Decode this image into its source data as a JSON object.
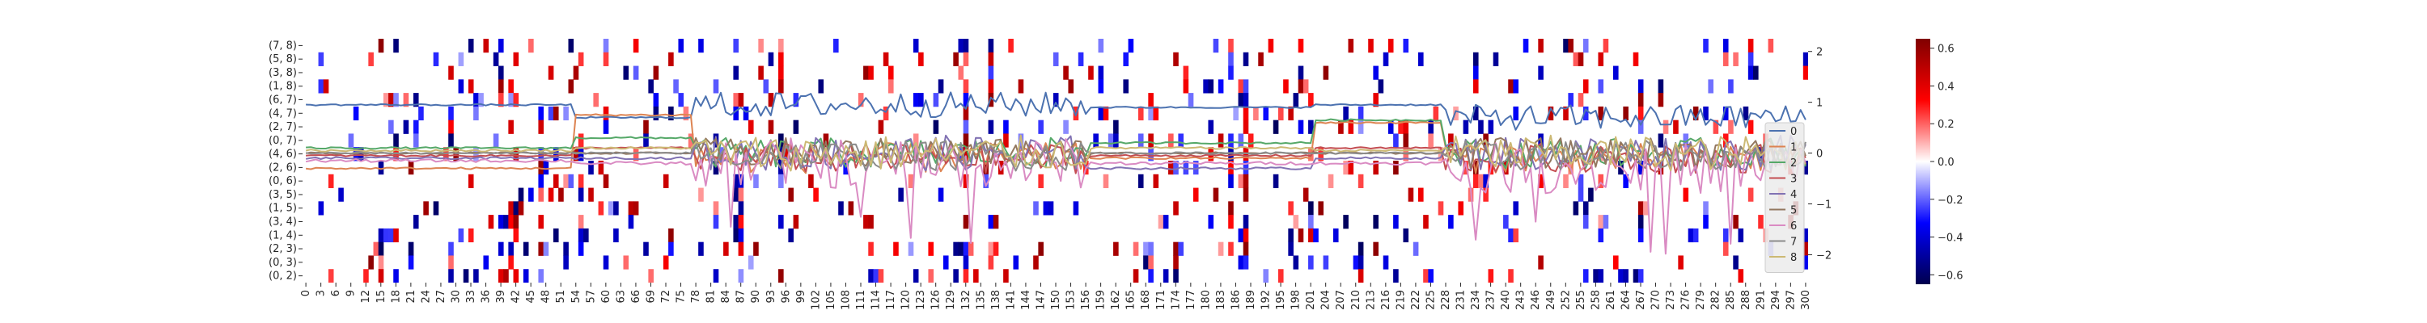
{
  "chart_data": {
    "type": "heatmap",
    "title": "",
    "xlabel": "",
    "ylabel": "",
    "row_labels": [
      "(7, 8)",
      "(5, 8)",
      "(3, 8)",
      "(1, 8)",
      "(6, 7)",
      "(4, 7)",
      "(2, 7)",
      "(0, 7)",
      "(4, 6)",
      "(2, 6)",
      "(0, 6)",
      "(3, 5)",
      "(1, 5)",
      "(3, 4)",
      "(1, 4)",
      "(2, 3)",
      "(0, 3)",
      "(0, 2)"
    ],
    "x_ticks": [
      0,
      3,
      6,
      9,
      12,
      15,
      18,
      21,
      24,
      27,
      30,
      33,
      36,
      39,
      42,
      45,
      48,
      51,
      54,
      57,
      60,
      63,
      66,
      69,
      72,
      75,
      78,
      81,
      84,
      87,
      90,
      93,
      96,
      99,
      102,
      105,
      108,
      111,
      114,
      117,
      120,
      123,
      126,
      129,
      132,
      135,
      138,
      141,
      144,
      147,
      150,
      153,
      156,
      159,
      162,
      165,
      168,
      171,
      174,
      177,
      180,
      183,
      186,
      189,
      192,
      195,
      198,
      201,
      204,
      207,
      210,
      213,
      216,
      219,
      222,
      225,
      228,
      231,
      234,
      237,
      240,
      243,
      246,
      249,
      252,
      255,
      258,
      261,
      264,
      267,
      270,
      273,
      276,
      279,
      282,
      285,
      288,
      291,
      294,
      297,
      300
    ],
    "x_range": [
      0,
      300
    ],
    "colorbar": {
      "cmap": "seismic",
      "range": [
        -0.65,
        0.65
      ],
      "ticks": [
        "0.6",
        "0.4",
        "0.2",
        "0.0",
        "−0.2",
        "−0.4",
        "−0.6"
      ],
      "tick_values": [
        0.6,
        0.4,
        0.2,
        0.0,
        -0.2,
        -0.4,
        -0.6
      ]
    },
    "twin_axis": {
      "ticks": [
        "2",
        "1",
        "0",
        "−1",
        "−2"
      ],
      "tick_values": [
        2,
        1,
        0,
        -1,
        -2
      ],
      "ylim": [
        -2.55,
        2.25
      ]
    },
    "series": [
      {
        "name": "0",
        "color": "#4c72b0",
        "level": 0.95,
        "noise": 0.25,
        "segments": [
          [
            0,
            0.95
          ],
          [
            54,
            0.7
          ],
          [
            78,
            0.95
          ],
          [
            157,
            0.9
          ],
          [
            202,
            0.95
          ],
          [
            228,
            0.7
          ]
        ]
      },
      {
        "name": "1",
        "color": "#dd8452",
        "level": -0.1,
        "noise": 0.3,
        "segments": [
          [
            0,
            -0.3
          ],
          [
            54,
            0.75
          ],
          [
            78,
            -0.1
          ],
          [
            157,
            -0.1
          ],
          [
            202,
            0.6
          ],
          [
            228,
            -0.1
          ]
        ]
      },
      {
        "name": "2",
        "color": "#55a868",
        "level": 0.0,
        "noise": 0.3,
        "segments": [
          [
            0,
            0.1
          ],
          [
            54,
            0.3
          ],
          [
            78,
            0.0
          ],
          [
            157,
            0.2
          ],
          [
            202,
            0.65
          ],
          [
            228,
            0.0
          ]
        ]
      },
      {
        "name": "3",
        "color": "#c44e52",
        "level": -0.1,
        "noise": 0.3,
        "segments": [
          [
            0,
            -0.05
          ],
          [
            54,
            0.1
          ],
          [
            78,
            -0.1
          ],
          [
            157,
            -0.05
          ],
          [
            202,
            0.1
          ],
          [
            228,
            -0.1
          ]
        ]
      },
      {
        "name": "4",
        "color": "#8172b3",
        "level": 0.0,
        "noise": 0.35,
        "segments": [
          [
            0,
            -0.1
          ],
          [
            54,
            -0.1
          ],
          [
            78,
            0.0
          ],
          [
            157,
            -0.3
          ],
          [
            202,
            -0.1
          ],
          [
            228,
            0.0
          ]
        ]
      },
      {
        "name": "5",
        "color": "#937860",
        "level": 0.0,
        "noise": 0.3,
        "segments": [
          [
            0,
            0.0
          ],
          [
            54,
            0.0
          ],
          [
            78,
            0.0
          ],
          [
            157,
            0.0
          ],
          [
            202,
            0.0
          ],
          [
            228,
            0.0
          ]
        ]
      },
      {
        "name": "6",
        "color": "#da8bc3",
        "level": -0.2,
        "noise": 0.5,
        "segments": [
          [
            0,
            -0.15
          ],
          [
            54,
            -0.2
          ],
          [
            78,
            -0.2
          ],
          [
            157,
            -0.2
          ],
          [
            202,
            -0.2
          ],
          [
            228,
            -0.3
          ]
        ]
      },
      {
        "name": "7",
        "color": "#8c8c8c",
        "level": -0.05,
        "noise": 0.3,
        "segments": [
          [
            0,
            0.0
          ],
          [
            54,
            0.0
          ],
          [
            78,
            -0.05
          ],
          [
            157,
            0.0
          ],
          [
            202,
            0.0
          ],
          [
            228,
            -0.05
          ]
        ]
      },
      {
        "name": "8",
        "color": "#ccb974",
        "level": 0.0,
        "noise": 0.35,
        "segments": [
          [
            0,
            0.05
          ],
          [
            54,
            0.1
          ],
          [
            78,
            0.0
          ],
          [
            157,
            0.1
          ],
          [
            202,
            0.05
          ],
          [
            228,
            0.0
          ]
        ]
      }
    ],
    "legend": {
      "placement": "right",
      "entries": [
        "0",
        "1",
        "2",
        "3",
        "4",
        "5",
        "6",
        "7",
        "8"
      ]
    }
  }
}
